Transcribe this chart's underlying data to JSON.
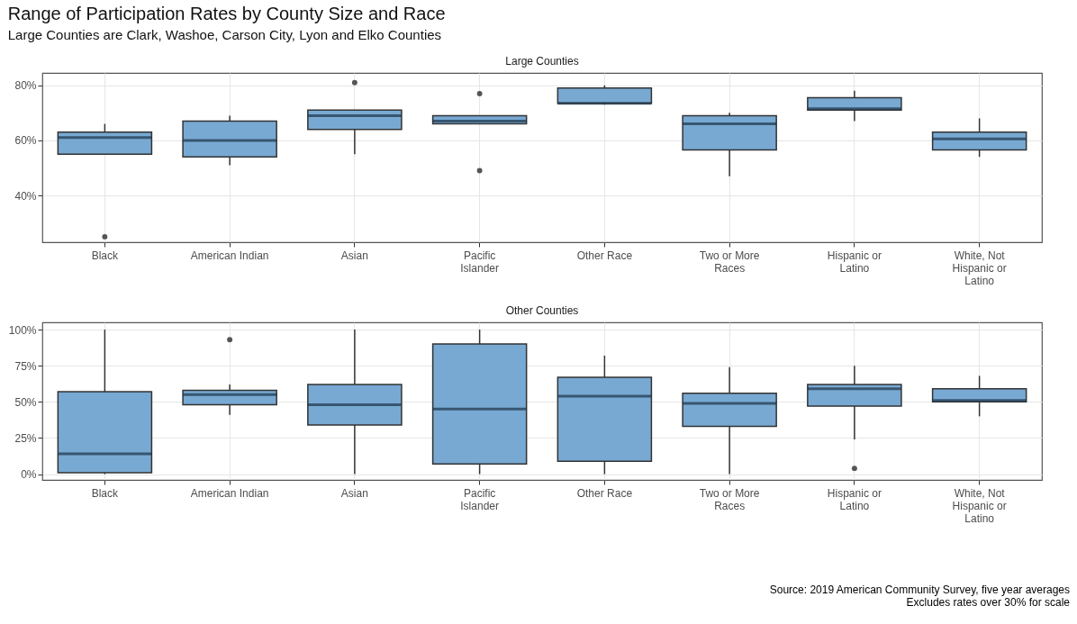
{
  "chart_data": [
    {
      "type": "box",
      "title": "Range of Participation Rates by County Size and Race",
      "subtitle": "Large Counties are Clark, Washoe, Carson City, Lyon and Elko Counties",
      "annotations": [
        "Large Counties"
      ],
      "categories": [
        "Black",
        "American Indian",
        "Asian",
        "Pacific Islander",
        "Other Race",
        "Two or More Races",
        "Hispanic or Latino",
        "White, Not Hispanic or Latino"
      ],
      "ylim": [
        23,
        84.5
      ],
      "yticks": [
        {
          "value": 40,
          "label": "40%"
        },
        {
          "value": 60,
          "label": "60%"
        },
        {
          "value": 80,
          "label": "80%"
        }
      ],
      "grid": true,
      "series": [
        {
          "color": "#78a9d3",
          "boxes": [
            {
              "low": 55,
              "q1": 55,
              "median": 61,
              "q3": 63,
              "high": 66,
              "outliers": [
                25
              ]
            },
            {
              "low": 51,
              "q1": 54,
              "median": 60,
              "q3": 67,
              "high": 69
            },
            {
              "low": 55,
              "q1": 64,
              "median": 69,
              "q3": 71,
              "high": 71,
              "outliers": [
                81
              ]
            },
            {
              "low": 66,
              "q1": 66,
              "median": 67,
              "q3": 69,
              "high": 69,
              "outliers": [
                77,
                49
              ]
            },
            {
              "low": 73,
              "q1": 73.5,
              "median": 73.5,
              "q3": 79,
              "high": 80
            },
            {
              "low": 47,
              "q1": 56.5,
              "median": 66,
              "q3": 69,
              "high": 70
            },
            {
              "low": 67,
              "q1": 71,
              "median": 71.5,
              "q3": 75.5,
              "high": 78
            },
            {
              "low": 54,
              "q1": 56.5,
              "median": 60.5,
              "q3": 63,
              "high": 68
            }
          ]
        }
      ]
    },
    {
      "type": "box",
      "annotations": [
        "Other Counties",
        "Source: 2019 American Community Survey, five year averages",
        "Excludes rates over 30% for scale"
      ],
      "categories": [
        "Black",
        "American Indian",
        "Asian",
        "Pacific Islander",
        "Other Race",
        "Two or More Races",
        "Hispanic or Latino",
        "White, Not Hispanic or Latino"
      ],
      "ylim": [
        -4,
        105
      ],
      "yticks": [
        {
          "value": 0,
          "label": "0%"
        },
        {
          "value": 25,
          "label": "25%"
        },
        {
          "value": 50,
          "label": "50%"
        },
        {
          "value": 75,
          "label": "75%"
        },
        {
          "value": 100,
          "label": "100%"
        }
      ],
      "grid": true,
      "series": [
        {
          "color": "#78a9d3",
          "boxes": [
            {
              "low": 0,
              "q1": 1,
              "median": 14,
              "q3": 57,
              "high": 100
            },
            {
              "low": 41,
              "q1": 48,
              "median": 55,
              "q3": 58,
              "high": 62,
              "outliers": [
                93
              ]
            },
            {
              "low": 0,
              "q1": 34,
              "median": 48,
              "q3": 62,
              "high": 100
            },
            {
              "low": 0,
              "q1": 7,
              "median": 45,
              "q3": 90,
              "high": 100
            },
            {
              "low": 0,
              "q1": 9,
              "median": 54,
              "q3": 67,
              "high": 82
            },
            {
              "low": 0,
              "q1": 33,
              "median": 49,
              "q3": 56,
              "high": 74
            },
            {
              "low": 24,
              "q1": 47,
              "median": 59,
              "q3": 62,
              "high": 75,
              "outliers": [
                4
              ]
            },
            {
              "low": 40,
              "q1": 50,
              "median": 51,
              "q3": 59,
              "high": 68
            }
          ]
        }
      ]
    }
  ]
}
